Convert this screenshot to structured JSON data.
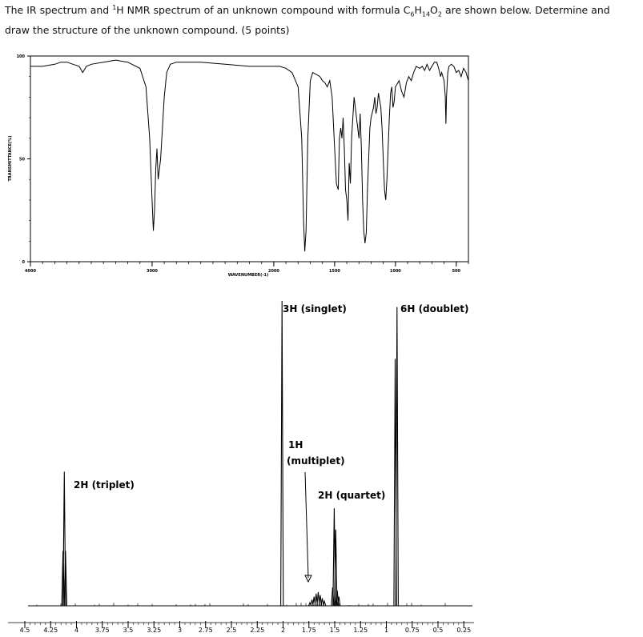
{
  "question": {
    "line1_pre": "The IR spectrum and ",
    "sup1": "1",
    "line1_mid": "H NMR spectrum of an unknown compound with formula C",
    "sub1": "6",
    "h_letter": "H",
    "sub2": "14",
    "o_letter": "O",
    "sub3": "2",
    "line1_post": " are shown below.  Determine and",
    "line2": "draw the structure of the unknown compound.  (5 points)"
  },
  "ir": {
    "title": "",
    "ylabel": "TRANSMITTANCE(%)",
    "xlabel": "WAVENUMBER(-1)"
  },
  "nmr": {
    "title": ""
  },
  "colors": {
    "line": "#000000",
    "background": "#ffffff"
  },
  "chart_data": [
    {
      "type": "line",
      "name": "IR spectrum",
      "xlabel": "WAVENUMBER(-1)",
      "ylabel": "TRANSMITTANCE(%)",
      "xlim": [
        4000,
        400
      ],
      "ylim": [
        0,
        100
      ],
      "x_ticks": [
        4000,
        3000,
        2000,
        1500,
        1000,
        500
      ],
      "y_ticks": [
        0,
        50,
        100
      ],
      "grid": false,
      "points": [
        [
          4000,
          95
        ],
        [
          3900,
          95
        ],
        [
          3800,
          96
        ],
        [
          3750,
          97
        ],
        [
          3700,
          97
        ],
        [
          3650,
          96
        ],
        [
          3600,
          95
        ],
        [
          3570,
          92
        ],
        [
          3540,
          95
        ],
        [
          3500,
          96
        ],
        [
          3400,
          97
        ],
        [
          3300,
          98
        ],
        [
          3200,
          97
        ],
        [
          3100,
          94
        ],
        [
          3050,
          85
        ],
        [
          3020,
          60
        ],
        [
          3000,
          30
        ],
        [
          2990,
          15
        ],
        [
          2980,
          25
        ],
        [
          2970,
          45
        ],
        [
          2960,
          55
        ],
        [
          2950,
          40
        ],
        [
          2940,
          45
        ],
        [
          2930,
          50
        ],
        [
          2920,
          60
        ],
        [
          2900,
          80
        ],
        [
          2880,
          92
        ],
        [
          2850,
          96
        ],
        [
          2800,
          97
        ],
        [
          2600,
          97
        ],
        [
          2400,
          96
        ],
        [
          2200,
          95
        ],
        [
          2000,
          95
        ],
        [
          1950,
          95
        ],
        [
          1900,
          94
        ],
        [
          1850,
          92
        ],
        [
          1800,
          85
        ],
        [
          1770,
          60
        ],
        [
          1755,
          20
        ],
        [
          1745,
          5
        ],
        [
          1735,
          15
        ],
        [
          1720,
          60
        ],
        [
          1700,
          88
        ],
        [
          1680,
          92
        ],
        [
          1650,
          91
        ],
        [
          1620,
          90
        ],
        [
          1600,
          88
        ],
        [
          1580,
          87
        ],
        [
          1560,
          85
        ],
        [
          1540,
          88
        ],
        [
          1520,
          80
        ],
        [
          1500,
          55
        ],
        [
          1485,
          38
        ],
        [
          1470,
          35
        ],
        [
          1460,
          60
        ],
        [
          1450,
          65
        ],
        [
          1440,
          60
        ],
        [
          1430,
          70
        ],
        [
          1420,
          55
        ],
        [
          1410,
          35
        ],
        [
          1400,
          30
        ],
        [
          1390,
          20
        ],
        [
          1380,
          48
        ],
        [
          1370,
          38
        ],
        [
          1360,
          60
        ],
        [
          1340,
          80
        ],
        [
          1320,
          70
        ],
        [
          1300,
          60
        ],
        [
          1290,
          72
        ],
        [
          1280,
          55
        ],
        [
          1270,
          30
        ],
        [
          1260,
          15
        ],
        [
          1250,
          9
        ],
        [
          1240,
          14
        ],
        [
          1230,
          35
        ],
        [
          1210,
          65
        ],
        [
          1200,
          70
        ],
        [
          1180,
          75
        ],
        [
          1170,
          80
        ],
        [
          1160,
          72
        ],
        [
          1150,
          75
        ],
        [
          1140,
          82
        ],
        [
          1120,
          75
        ],
        [
          1110,
          65
        ],
        [
          1100,
          50
        ],
        [
          1090,
          35
        ],
        [
          1080,
          30
        ],
        [
          1070,
          40
        ],
        [
          1060,
          55
        ],
        [
          1050,
          70
        ],
        [
          1040,
          82
        ],
        [
          1030,
          85
        ],
        [
          1020,
          75
        ],
        [
          1010,
          78
        ],
        [
          1000,
          85
        ],
        [
          970,
          88
        ],
        [
          950,
          83
        ],
        [
          930,
          80
        ],
        [
          910,
          87
        ],
        [
          890,
          90
        ],
        [
          870,
          88
        ],
        [
          850,
          92
        ],
        [
          830,
          95
        ],
        [
          800,
          94
        ],
        [
          780,
          95
        ],
        [
          760,
          93
        ],
        [
          740,
          96
        ],
        [
          720,
          93
        ],
        [
          700,
          95
        ],
        [
          680,
          97
        ],
        [
          660,
          97
        ],
        [
          640,
          93
        ],
        [
          630,
          90
        ],
        [
          620,
          92
        ],
        [
          600,
          88
        ],
        [
          590,
          80
        ],
        [
          585,
          67
        ],
        [
          580,
          80
        ],
        [
          570,
          92
        ],
        [
          560,
          95
        ],
        [
          540,
          96
        ],
        [
          520,
          95
        ],
        [
          500,
          92
        ],
        [
          480,
          93
        ],
        [
          460,
          90
        ],
        [
          440,
          94
        ],
        [
          420,
          92
        ],
        [
          400,
          88
        ]
      ]
    },
    {
      "type": "line",
      "name": "1H NMR spectrum",
      "xlabel": "",
      "ylabel": "",
      "xlim": [
        4.5,
        0.25
      ],
      "x_ticks": [
        4.5,
        4.25,
        4,
        3.75,
        3.5,
        3.25,
        3,
        2.75,
        2.5,
        2.25,
        2,
        1.75,
        1.5,
        1.25,
        1,
        0.75,
        0.5,
        0.25
      ],
      "x_tick_labels": [
        "4.5",
        "4.25",
        "4",
        "3.75",
        "3.5",
        "3.25",
        "3",
        "2.75",
        "2.5",
        "2.25",
        "2",
        "1.75",
        "1.5",
        "1.25",
        "1",
        "0.75",
        "0.5",
        "0.25"
      ],
      "grid": false,
      "peaks": [
        {
          "ppm": 4.13,
          "height": 0.18
        },
        {
          "ppm": 4.118,
          "height": 0.44
        },
        {
          "ppm": 4.106,
          "height": 0.18
        },
        {
          "ppm": 2.01,
          "height": 1.0
        },
        {
          "ppm": 1.74,
          "height": 0.01
        },
        {
          "ppm": 1.72,
          "height": 0.02
        },
        {
          "ppm": 1.7,
          "height": 0.03
        },
        {
          "ppm": 1.68,
          "height": 0.04
        },
        {
          "ppm": 1.66,
          "height": 0.045
        },
        {
          "ppm": 1.64,
          "height": 0.035
        },
        {
          "ppm": 1.62,
          "height": 0.025
        },
        {
          "ppm": 1.6,
          "height": 0.015
        },
        {
          "ppm": 1.52,
          "height": 0.06
        },
        {
          "ppm": 1.505,
          "height": 0.32
        },
        {
          "ppm": 1.49,
          "height": 0.25
        },
        {
          "ppm": 1.475,
          "height": 0.05
        },
        {
          "ppm": 1.46,
          "height": 0.03
        },
        {
          "ppm": 0.915,
          "height": 0.81
        },
        {
          "ppm": 0.897,
          "height": 0.98
        }
      ],
      "annotations": [
        {
          "text": "3H (singlet)",
          "ppm": 2.01
        },
        {
          "text": "6H (doublet)",
          "ppm": 0.9
        },
        {
          "text": "1H",
          "ppm": 1.67
        },
        {
          "text": "(multiplet)",
          "ppm": 1.67
        },
        {
          "text": "2H (quartet)",
          "ppm": 1.5
        },
        {
          "text": "2H (triplet)",
          "ppm": 4.12
        }
      ]
    }
  ]
}
